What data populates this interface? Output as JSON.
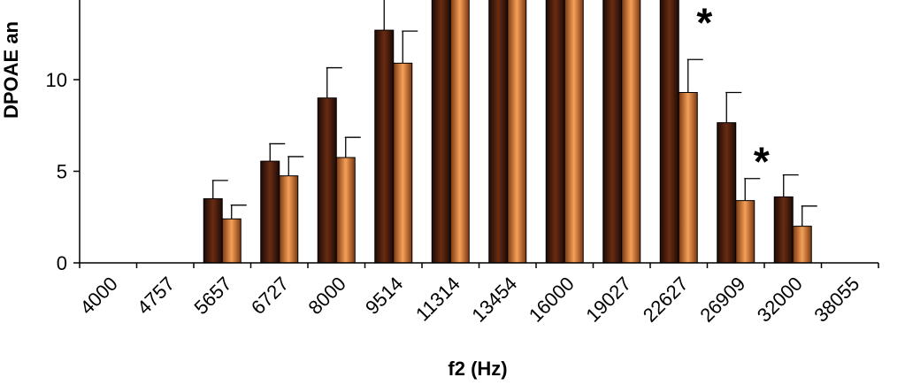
{
  "chart_data": {
    "type": "bar",
    "title": "",
    "xlabel": "f2 (Hz)",
    "ylabel": "DPOAE an",
    "ylim": [
      0,
      14.7
    ],
    "yticks": [
      0,
      5,
      10
    ],
    "categories": [
      "4000",
      "4757",
      "5657",
      "6727",
      "8000",
      "9514",
      "11314",
      "13454",
      "16000",
      "19027",
      "22627",
      "26909",
      "32000",
      "38055"
    ],
    "series": [
      {
        "color": "#3a1408",
        "values": [
          null,
          null,
          3.5,
          5.55,
          9.0,
          12.7,
          14.7,
          14.7,
          14.7,
          14.7,
          14.7,
          7.65,
          3.6,
          null
        ],
        "error": [
          null,
          null,
          1.0,
          0.95,
          1.65,
          1.8,
          null,
          null,
          null,
          null,
          null,
          1.65,
          1.2,
          null
        ]
      },
      {
        "color": "#e08a40",
        "values": [
          null,
          null,
          2.4,
          4.75,
          5.75,
          10.9,
          14.7,
          14.4,
          14.7,
          14.7,
          9.3,
          3.4,
          2.0,
          null
        ],
        "error": [
          null,
          null,
          0.75,
          1.05,
          1.1,
          1.75,
          null,
          null,
          null,
          null,
          1.8,
          1.2,
          1.1,
          null
        ]
      }
    ],
    "annotations": [
      {
        "text": "*",
        "category": "22627",
        "value": 13.8
      },
      {
        "text": "*",
        "category": "26909",
        "value": 6.2
      }
    ],
    "grid": false,
    "legend": "none"
  }
}
